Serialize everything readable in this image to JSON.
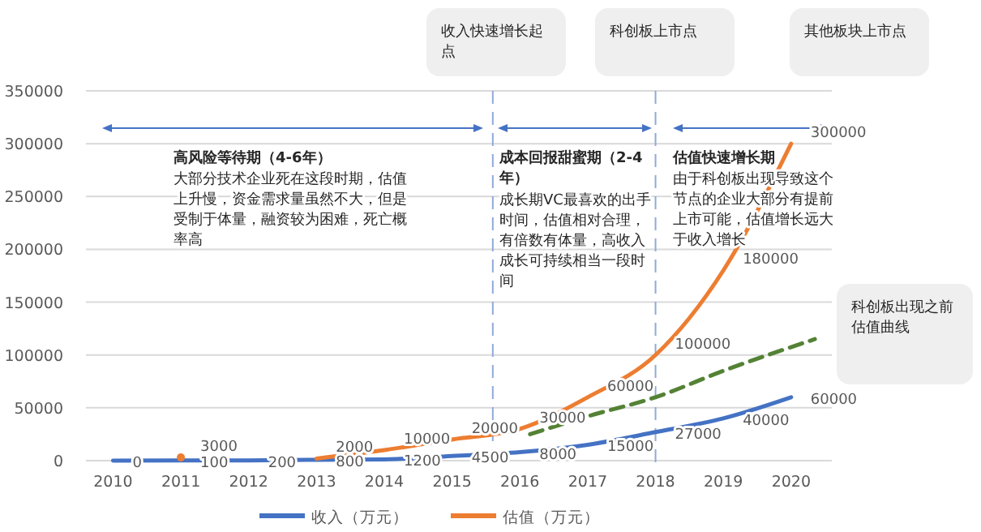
{
  "chart_data": {
    "type": "line",
    "x": [
      2010,
      2011,
      2012,
      2013,
      2014,
      2015,
      2016,
      2017,
      2018,
      2019,
      2020
    ],
    "xlim": [
      2009.6,
      2020.6
    ],
    "xticks": [
      2010,
      2011,
      2012,
      2013,
      2014,
      2015,
      2016,
      2017,
      2018,
      2019,
      2020
    ],
    "ylim": [
      0,
      350000
    ],
    "yticks": [
      0,
      50000,
      100000,
      150000,
      200000,
      250000,
      300000,
      350000
    ],
    "grid": "y",
    "legend": "bottom",
    "series": [
      {
        "name": "收入（万元）",
        "color": "#4472c4",
        "values": [
          0,
          100,
          200,
          800,
          1200,
          4500,
          8000,
          15000,
          27000,
          40000,
          60000
        ],
        "value_labels": [
          "0",
          "100",
          "200",
          "800",
          "1200",
          "4500",
          "8000",
          "15000",
          "27000",
          "40000",
          "60000"
        ]
      },
      {
        "name": "估值（万元）",
        "color": "#ed7d31",
        "values": [
          null,
          3000,
          null,
          2000,
          10000,
          20000,
          30000,
          60000,
          100000,
          180000,
          300000
        ],
        "value_labels": [
          null,
          "3000",
          null,
          "2000",
          "10000",
          "20000",
          "30000",
          "60000",
          "100000",
          "180000",
          "300000"
        ]
      },
      {
        "color": "#548235",
        "line_style": "dashed",
        "x": [
          2016.15,
          2017,
          2018,
          2019,
          2020.35
        ],
        "values": [
          25000,
          42000,
          60000,
          85000,
          115000
        ]
      }
    ],
    "ref_lines": [
      {
        "axis": "x",
        "value": 2015.6,
        "color": "#8faadc",
        "line_style": "dashed"
      },
      {
        "axis": "x",
        "value": 2018,
        "color": "#8faadc",
        "line_style": "dashed"
      }
    ],
    "annotations": [
      "收入快速增长起点",
      "科创板上市点",
      "其他板块上市点",
      "科创板出现之前估值曲线",
      "高风险等待期（4-6年）",
      "大部分技术企业死在这段时期，估值上升慢，资金需求量虽然不大，但是受制于体量，融资较为困难，死亡概率高",
      "成本回报甜蜜期（2-4年）",
      "成长期VC最喜欢的出手时间，估值相对合理，有倍数有体量，高收入成长可持续相当一段时间",
      "估值快速增长期",
      "由于科创板出现导致这个节点的企业大部分有提前上市可能，估值增长远大于收入增长"
    ]
  }
}
